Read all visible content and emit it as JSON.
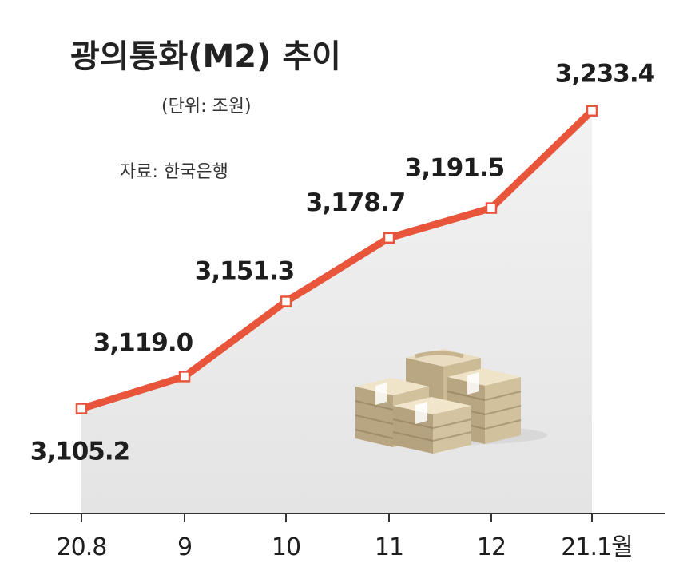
{
  "chart_data": {
    "type": "area",
    "title": "광의통화(M2) 추이",
    "unit": "(단위: 조원)",
    "source": "자료: 한국은행",
    "categories": [
      "20.8",
      "9",
      "10",
      "11",
      "12",
      "21.1월"
    ],
    "values": [
      3105.2,
      3119.0,
      3151.3,
      3178.7,
      3191.5,
      3233.4
    ],
    "value_labels": [
      "3,105.2",
      "3,119.0",
      "3,151.3",
      "3,178.7",
      "3,191.5",
      "3,233.4"
    ],
    "ylim": [
      3060,
      3245
    ],
    "grid": false,
    "legend": "none",
    "colors": {
      "line": "#e8553b",
      "area": "#ededed",
      "marker_fill": "#ffffff"
    }
  },
  "decoration": {
    "icon": "money-stack-icon"
  }
}
